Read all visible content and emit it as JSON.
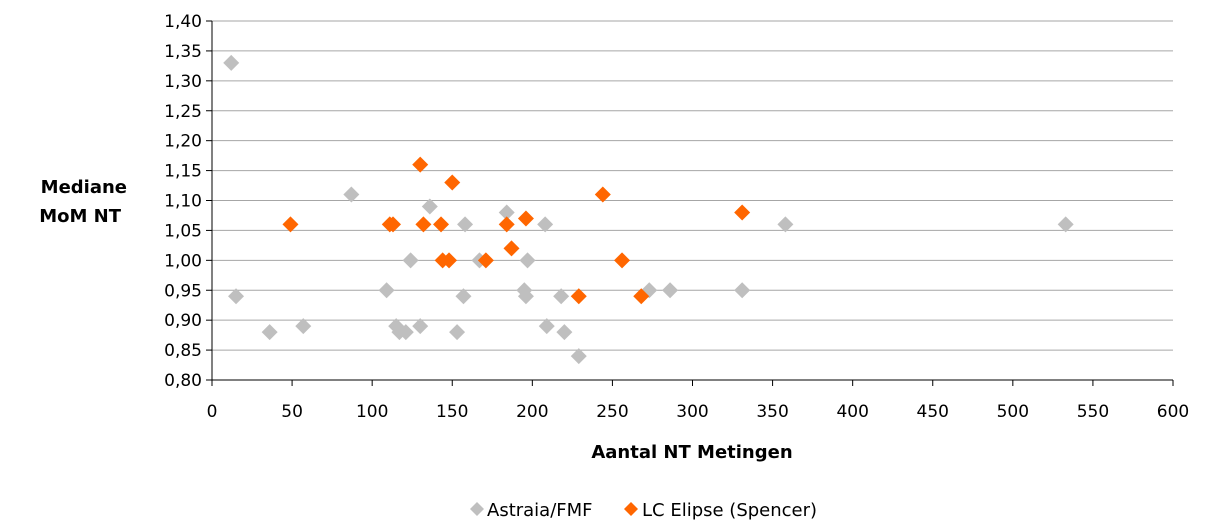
{
  "chart_data": {
    "type": "scatter",
    "title": "",
    "xlabel": "Aantal NT Metingen",
    "ylabel_lines": [
      "Mediane",
      "MoM NT"
    ],
    "xlim": [
      0,
      600
    ],
    "ylim": [
      0.8,
      1.4
    ],
    "x_ticks": [
      0,
      50,
      100,
      150,
      200,
      250,
      300,
      350,
      400,
      450,
      500,
      550,
      600
    ],
    "y_ticks": [
      0.8,
      0.85,
      0.9,
      0.95,
      1.0,
      1.05,
      1.1,
      1.15,
      1.2,
      1.25,
      1.3,
      1.35,
      1.4
    ],
    "x_tick_labels": [
      "0",
      "50",
      "100",
      "150",
      "200",
      "250",
      "300",
      "350",
      "400",
      "450",
      "500",
      "550",
      "600"
    ],
    "y_tick_labels": [
      "0,80",
      "0,85",
      "0,90",
      "0,95",
      "1,00",
      "1,05",
      "1,10",
      "1,15",
      "1,20",
      "1,25",
      "1,30",
      "1,35",
      "1,40"
    ],
    "grid": {
      "horizontal": true,
      "vertical": false
    },
    "legend_position": "bottom",
    "series": [
      {
        "name": "Astraia/FMF",
        "color": "#bfbfbf",
        "marker": "diamond",
        "points": [
          [
            12,
            1.33
          ],
          [
            15,
            0.94
          ],
          [
            36,
            0.88
          ],
          [
            57,
            0.89
          ],
          [
            87,
            1.11
          ],
          [
            109,
            0.95
          ],
          [
            115,
            0.89
          ],
          [
            117,
            0.88
          ],
          [
            121,
            0.88
          ],
          [
            124,
            1.0
          ],
          [
            130,
            0.89
          ],
          [
            136,
            1.09
          ],
          [
            153,
            0.88
          ],
          [
            157,
            0.94
          ],
          [
            158,
            1.06
          ],
          [
            167,
            1.0
          ],
          [
            184,
            1.08
          ],
          [
            195,
            0.95
          ],
          [
            196,
            0.94
          ],
          [
            197,
            1.0
          ],
          [
            208,
            1.06
          ],
          [
            209,
            0.89
          ],
          [
            218,
            0.94
          ],
          [
            220,
            0.88
          ],
          [
            229,
            0.84
          ],
          [
            273,
            0.95
          ],
          [
            286,
            0.95
          ],
          [
            331,
            0.95
          ],
          [
            358,
            1.06
          ],
          [
            533,
            1.06
          ]
        ]
      },
      {
        "name": "LC Elipse (Spencer)",
        "color": "#ff6600",
        "marker": "diamond",
        "points": [
          [
            49,
            1.06
          ],
          [
            111,
            1.06
          ],
          [
            113,
            1.06
          ],
          [
            130,
            1.16
          ],
          [
            132,
            1.06
          ],
          [
            143,
            1.06
          ],
          [
            144,
            1.0
          ],
          [
            148,
            1.0
          ],
          [
            150,
            1.13
          ],
          [
            171,
            1.0
          ],
          [
            184,
            1.06
          ],
          [
            187,
            1.02
          ],
          [
            196,
            1.07
          ],
          [
            229,
            0.94
          ],
          [
            244,
            1.11
          ],
          [
            256,
            1.0
          ],
          [
            268,
            0.94
          ],
          [
            331,
            1.08
          ]
        ]
      }
    ]
  }
}
